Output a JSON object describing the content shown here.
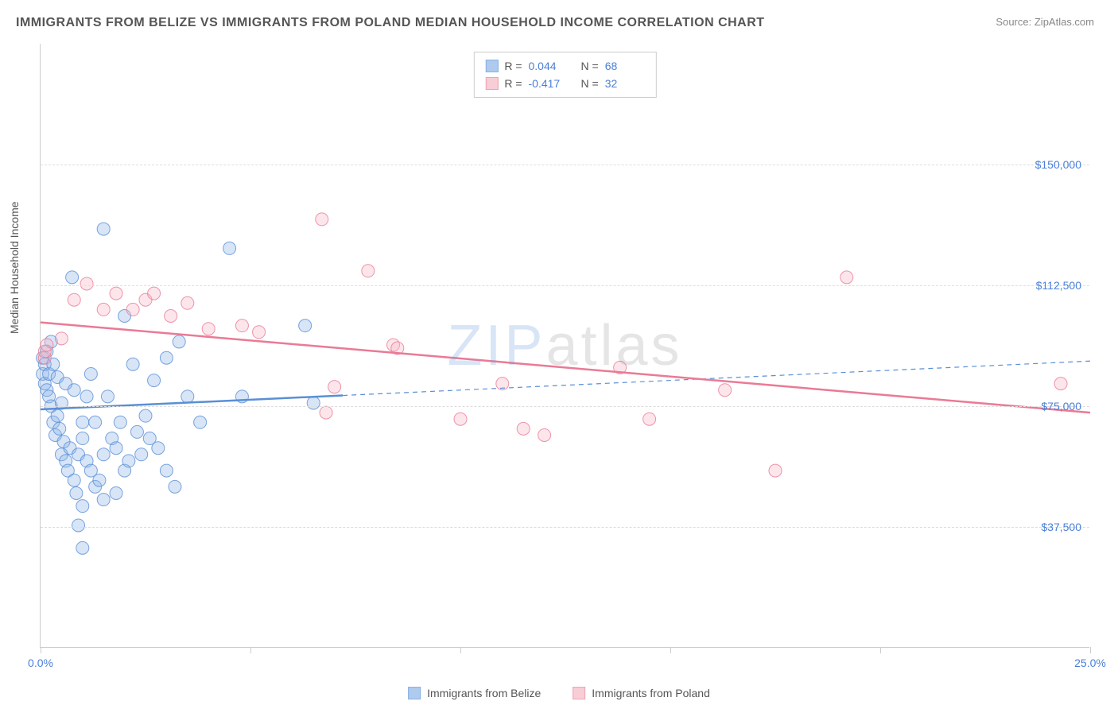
{
  "title": "IMMIGRANTS FROM BELIZE VS IMMIGRANTS FROM POLAND MEDIAN HOUSEHOLD INCOME CORRELATION CHART",
  "source_label": "Source:",
  "source_value": "ZipAtlas.com",
  "ylabel": "Median Household Income",
  "watermark_a": "ZIP",
  "watermark_b": "atlas",
  "chart": {
    "type": "scatter",
    "background_color": "#ffffff",
    "grid_color": "#dddddd",
    "axis_color": "#cccccc",
    "xlim": [
      0,
      25
    ],
    "ylim": [
      0,
      187500
    ],
    "xticks": [
      0,
      5,
      10,
      15,
      20,
      25
    ],
    "xtick_labels": {
      "0": "0.0%",
      "25": "25.0%"
    },
    "yticks": [
      37500,
      75000,
      112500,
      150000
    ],
    "ytick_labels": [
      "$37,500",
      "$75,000",
      "$112,500",
      "$150,000"
    ],
    "marker_radius": 8,
    "marker_fill_opacity": 0.35,
    "marker_stroke_opacity": 0.8,
    "series": [
      {
        "name": "Immigrants from Belize",
        "color_fill": "#8db4e8",
        "color_stroke": "#5a8fd6",
        "r_value": "0.044",
        "n_value": "68",
        "trend": {
          "y_start": 74000,
          "y_end": 89000,
          "solid_until_x": 7.2,
          "stroke_width_solid": 2.5,
          "stroke_width_dash": 1.2
        },
        "points": [
          [
            0.05,
            85000
          ],
          [
            0.05,
            90000
          ],
          [
            0.1,
            82000
          ],
          [
            0.1,
            88000
          ],
          [
            0.15,
            80000
          ],
          [
            0.15,
            92000
          ],
          [
            0.2,
            78000
          ],
          [
            0.2,
            85000
          ],
          [
            0.25,
            75000
          ],
          [
            0.25,
            95000
          ],
          [
            0.3,
            70000
          ],
          [
            0.3,
            88000
          ],
          [
            0.35,
            66000
          ],
          [
            0.4,
            72000
          ],
          [
            0.4,
            84000
          ],
          [
            0.45,
            68000
          ],
          [
            0.5,
            60000
          ],
          [
            0.5,
            76000
          ],
          [
            0.55,
            64000
          ],
          [
            0.6,
            58000
          ],
          [
            0.6,
            82000
          ],
          [
            0.65,
            55000
          ],
          [
            0.7,
            62000
          ],
          [
            0.75,
            115000
          ],
          [
            0.8,
            52000
          ],
          [
            0.8,
            80000
          ],
          [
            0.85,
            48000
          ],
          [
            0.9,
            60000
          ],
          [
            0.9,
            38000
          ],
          [
            1.0,
            70000
          ],
          [
            1.0,
            65000
          ],
          [
            1.0,
            44000
          ],
          [
            1.0,
            31000
          ],
          [
            1.1,
            58000
          ],
          [
            1.1,
            78000
          ],
          [
            1.2,
            85000
          ],
          [
            1.2,
            55000
          ],
          [
            1.3,
            50000
          ],
          [
            1.3,
            70000
          ],
          [
            1.4,
            52000
          ],
          [
            1.5,
            130000
          ],
          [
            1.5,
            60000
          ],
          [
            1.5,
            46000
          ],
          [
            1.6,
            78000
          ],
          [
            1.7,
            65000
          ],
          [
            1.8,
            62000
          ],
          [
            1.8,
            48000
          ],
          [
            1.9,
            70000
          ],
          [
            2.0,
            55000
          ],
          [
            2.0,
            103000
          ],
          [
            2.1,
            58000
          ],
          [
            2.2,
            88000
          ],
          [
            2.3,
            67000
          ],
          [
            2.4,
            60000
          ],
          [
            2.5,
            72000
          ],
          [
            2.6,
            65000
          ],
          [
            2.7,
            83000
          ],
          [
            2.8,
            62000
          ],
          [
            3.0,
            90000
          ],
          [
            3.0,
            55000
          ],
          [
            3.2,
            50000
          ],
          [
            3.3,
            95000
          ],
          [
            3.5,
            78000
          ],
          [
            3.8,
            70000
          ],
          [
            4.5,
            124000
          ],
          [
            4.8,
            78000
          ],
          [
            6.3,
            100000
          ],
          [
            6.5,
            76000
          ]
        ]
      },
      {
        "name": "Immigrants from Poland",
        "color_fill": "#f5b8c5",
        "color_stroke": "#ea7a95",
        "r_value": "-0.417",
        "n_value": "32",
        "trend": {
          "y_start": 101000,
          "y_end": 73000,
          "solid_until_x": 25,
          "stroke_width_solid": 2.5,
          "stroke_width_dash": 0
        },
        "points": [
          [
            0.1,
            90000
          ],
          [
            0.1,
            92000
          ],
          [
            0.15,
            94000
          ],
          [
            0.5,
            96000
          ],
          [
            0.8,
            108000
          ],
          [
            1.1,
            113000
          ],
          [
            1.5,
            105000
          ],
          [
            1.8,
            110000
          ],
          [
            2.2,
            105000
          ],
          [
            2.5,
            108000
          ],
          [
            2.7,
            110000
          ],
          [
            3.1,
            103000
          ],
          [
            3.5,
            107000
          ],
          [
            4.0,
            99000
          ],
          [
            4.8,
            100000
          ],
          [
            5.2,
            98000
          ],
          [
            6.7,
            133000
          ],
          [
            6.8,
            73000
          ],
          [
            7.0,
            81000
          ],
          [
            7.8,
            117000
          ],
          [
            8.4,
            94000
          ],
          [
            8.5,
            93000
          ],
          [
            10.0,
            71000
          ],
          [
            11.0,
            82000
          ],
          [
            11.5,
            68000
          ],
          [
            12.0,
            66000
          ],
          [
            13.8,
            87000
          ],
          [
            14.5,
            71000
          ],
          [
            16.3,
            80000
          ],
          [
            17.5,
            55000
          ],
          [
            19.2,
            115000
          ],
          [
            24.3,
            82000
          ]
        ]
      }
    ],
    "legend_r_label": "R =",
    "legend_n_label": "N ="
  }
}
